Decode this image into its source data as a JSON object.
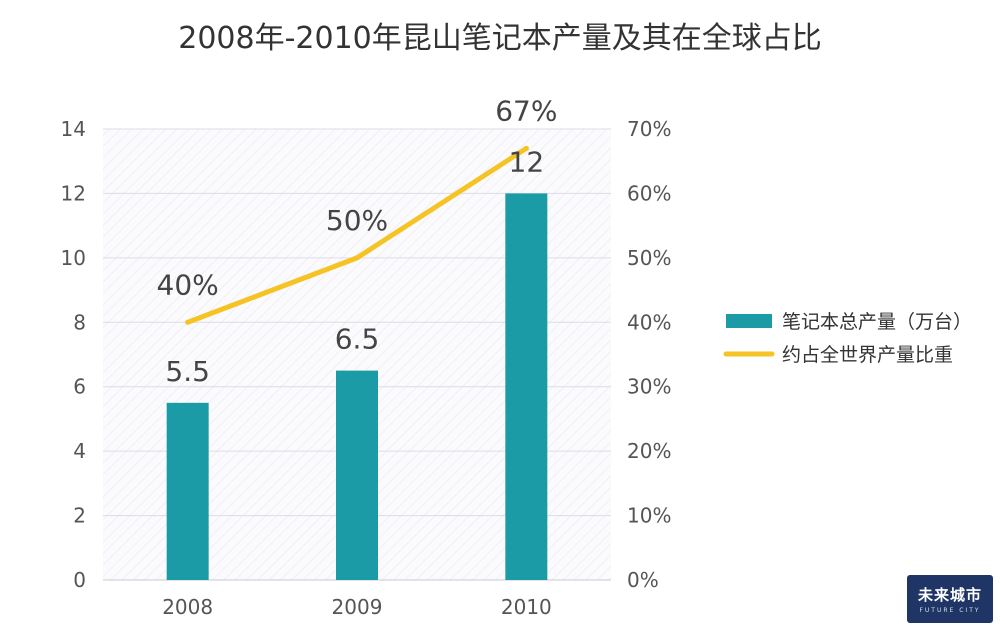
{
  "chart_data": {
    "type": "bar",
    "title": "2008年-2010年昆山笔记本产量及其在全球占比",
    "categories": [
      "2008",
      "2009",
      "2010"
    ],
    "series": [
      {
        "name": "笔记本总产量（万台）",
        "type": "bar",
        "axis": "left",
        "values": [
          5.5,
          6.5,
          12
        ],
        "labels": [
          "5.5",
          "6.5",
          "12"
        ]
      },
      {
        "name": "约占全世界产量比重",
        "type": "line",
        "axis": "right",
        "values": [
          40,
          50,
          67
        ],
        "labels": [
          "40%",
          "50%",
          "67%"
        ]
      }
    ],
    "y_left": {
      "ylim": [
        0,
        14
      ],
      "ticks": [
        "0",
        "2",
        "4",
        "6",
        "8",
        "10",
        "12",
        "14"
      ]
    },
    "y_right": {
      "ylim": [
        0,
        70
      ],
      "ticks": [
        "0%",
        "10%",
        "20%",
        "30%",
        "40%",
        "50%",
        "60%",
        "70%"
      ]
    },
    "grid": true,
    "legend_position": "right",
    "colors": {
      "bar": "#1a9ba6",
      "line": "#f6c325",
      "grid": "#dcdce6"
    }
  },
  "logo": {
    "text": "未来城市",
    "sub": "FUTURE CITY"
  }
}
